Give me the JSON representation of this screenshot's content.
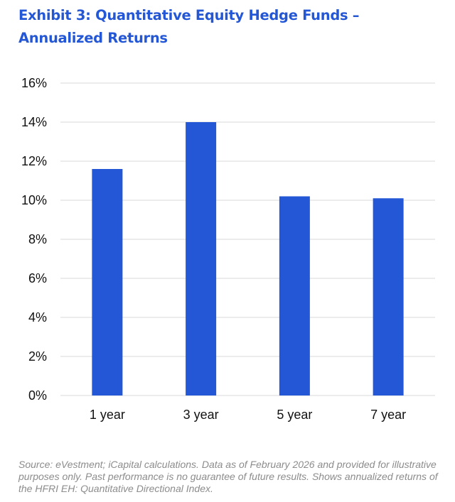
{
  "header": {
    "title_line1": "Exhibit 3: Quantitative Equity Hedge Funds –",
    "title_line2": "Annualized Returns"
  },
  "chart_data": {
    "type": "bar",
    "title": "Exhibit 3: Quantitative Equity Hedge Funds – Annualized Returns",
    "categories": [
      "1 year",
      "3 year",
      "5 year",
      "7 year"
    ],
    "values": [
      11.6,
      14.0,
      10.2,
      10.1
    ],
    "value_unit": "%",
    "xlabel": "",
    "ylabel": "",
    "ylim": [
      0,
      16
    ],
    "yticks": [
      0,
      2,
      4,
      6,
      8,
      10,
      12,
      14,
      16
    ],
    "ytick_labels": [
      "0%",
      "2%",
      "4%",
      "6%",
      "8%",
      "10%",
      "12%",
      "14%",
      "16%"
    ],
    "grid": true,
    "legend": "none",
    "bar_color": "#2457d6",
    "grid_color": "#d9d9d9"
  },
  "footer": {
    "source": "Source: eVestment; iCapital calculations. Data as of February 2026 and provided for illustrative purposes only. Past performance is no guarantee of future results. Shows annualized returns of the HFRI EH: Quantitative Directional Index."
  }
}
